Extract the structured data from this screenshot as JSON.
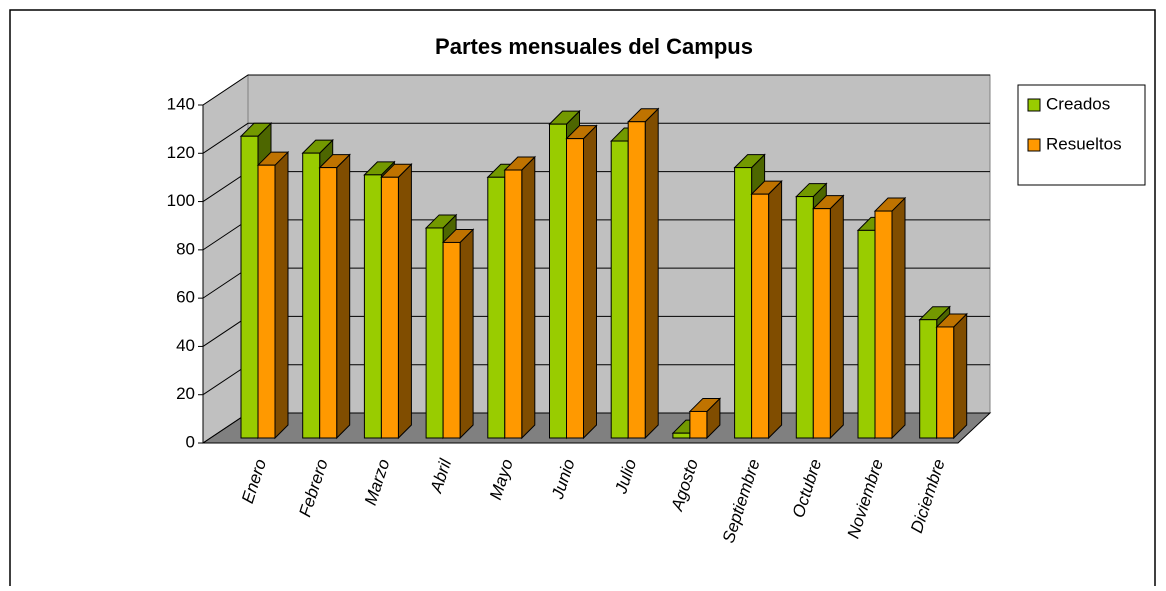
{
  "chart_data": {
    "type": "bar3d",
    "title": "Partes mensuales del Campus",
    "categories": [
      "Enero",
      "Febrero",
      "Marzo",
      "Abril",
      "Mayo",
      "Junio",
      "Julio",
      "Agosto",
      "Septiembre",
      "Octubre",
      "Noviembre",
      "Diciembre"
    ],
    "series": [
      {
        "name": "Creados",
        "color": "#99cc00",
        "values": [
          125,
          118,
          109,
          87,
          108,
          130,
          123,
          2,
          112,
          100,
          86,
          49
        ]
      },
      {
        "name": "Resueltos",
        "color": "#ff9900",
        "values": [
          113,
          112,
          108,
          81,
          111,
          124,
          131,
          11,
          101,
          95,
          94,
          46
        ]
      }
    ],
    "ylim": [
      0,
      140
    ],
    "yticks": [
      0,
      20,
      40,
      60,
      80,
      100,
      120,
      140
    ],
    "grid": true,
    "legend": "right"
  }
}
